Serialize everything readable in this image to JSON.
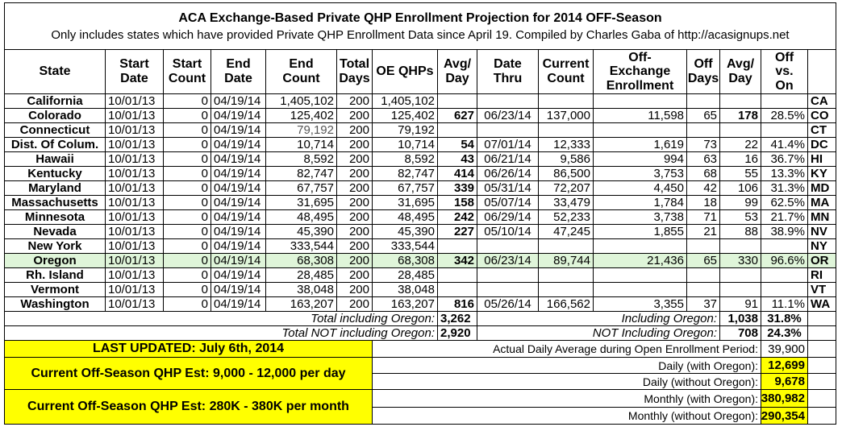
{
  "title": "ACA Exchange-Based Private QHP Enrollment Projection for 2014 OFF-Season",
  "subtitle": "Only includes states which have provided Private QHP Enrollment Data since April 19. Compiled by Charles Gaba of http://acasignups.net",
  "table": {
    "headers": [
      "State",
      "Start Date",
      "Start Count",
      "End Date",
      "End Count",
      "Total Days",
      "OE QHPs",
      "Avg/ Day",
      "Date Thru",
      "Current Count",
      "Off-Exchange Enrollment",
      "Off Days",
      "Avg/ Day",
      "Off vs. On"
    ],
    "rows": [
      [
        "California",
        "10/01/13",
        "0",
        "04/19/14",
        "1,405,102",
        "200",
        "1,405,102",
        null,
        null,
        null,
        null,
        null,
        null,
        null,
        "CA"
      ],
      [
        "Colorado",
        "10/01/13",
        "0",
        "04/19/14",
        "125,402",
        "200",
        "125,402",
        "627",
        "06/23/14",
        "137,000",
        "11,598",
        "65",
        "178",
        "28.5%",
        "CO"
      ],
      [
        "Connecticut",
        "10/01/13",
        "0",
        "04/19/14",
        "79,192",
        "200",
        "79,192",
        null,
        null,
        null,
        null,
        null,
        null,
        null,
        "CT"
      ],
      [
        "Dist. Of Colum.",
        "10/01/13",
        "0",
        "04/19/14",
        "10,714",
        "200",
        "10,714",
        "54",
        "07/01/14",
        "12,333",
        "1,619",
        "73",
        "22",
        "41.4%",
        "DC"
      ],
      [
        "Hawaii",
        "10/01/13",
        "0",
        "04/19/14",
        "8,592",
        "200",
        "8,592",
        "43",
        "06/21/14",
        "9,586",
        "994",
        "63",
        "16",
        "36.7%",
        "HI"
      ],
      [
        "Kentucky",
        "10/01/13",
        "0",
        "04/19/14",
        "82,747",
        "200",
        "82,747",
        "414",
        "06/26/14",
        "86,500",
        "3,753",
        "68",
        "55",
        "13.3%",
        "KY"
      ],
      [
        "Maryland",
        "10/01/13",
        "0",
        "04/19/14",
        "67,757",
        "200",
        "67,757",
        "339",
        "05/31/14",
        "72,207",
        "4,450",
        "42",
        "106",
        "31.3%",
        "MD"
      ],
      [
        "Massachusetts",
        "10/01/13",
        "0",
        "04/19/14",
        "31,695",
        "200",
        "31,695",
        "158",
        "05/07/14",
        "33,479",
        "1,784",
        "18",
        "99",
        "62.5%",
        "MA"
      ],
      [
        "Minnesota",
        "10/01/13",
        "0",
        "04/19/14",
        "48,495",
        "200",
        "48,495",
        "242",
        "06/29/14",
        "52,233",
        "3,738",
        "71",
        "53",
        "21.7%",
        "MN"
      ],
      [
        "Nevada",
        "10/01/13",
        "0",
        "04/19/14",
        "45,390",
        "200",
        "45,390",
        "227",
        "05/10/14",
        "47,245",
        "1,855",
        "21",
        "88",
        "38.9%",
        "NV"
      ],
      [
        "New York",
        "10/01/13",
        "0",
        "04/19/14",
        "333,544",
        "200",
        "333,544",
        null,
        null,
        null,
        null,
        null,
        null,
        null,
        "NY"
      ],
      [
        "Oregon",
        "10/01/13",
        "0",
        "04/19/14",
        "68,308",
        "200",
        "68,308",
        "342",
        "06/23/14",
        "89,744",
        "21,436",
        "65",
        "330",
        "96.6%",
        "OR"
      ],
      [
        "Rh. Island",
        "10/01/13",
        "0",
        "04/19/14",
        "28,485",
        "200",
        "28,485",
        null,
        null,
        null,
        null,
        null,
        null,
        null,
        "RI"
      ],
      [
        "Vermont",
        "10/01/13",
        "0",
        "04/19/14",
        "38,048",
        "200",
        "38,048",
        null,
        null,
        null,
        null,
        null,
        null,
        null,
        "VT"
      ],
      [
        "Washington",
        "10/01/13",
        "0",
        "04/19/14",
        "163,207",
        "200",
        "163,207",
        "816",
        "05/26/14",
        "166,562",
        "3,355",
        "37",
        "91",
        "11.1%",
        "WA"
      ]
    ]
  },
  "totals": [
    {
      "left_label": "Total including Oregon:",
      "left_value": "3,262",
      "right_label": "Including Oregon:",
      "right_value": "1,038",
      "right_pct": "31.8%"
    },
    {
      "left_label": "Total NOT including Oregon:",
      "left_value": "2,920",
      "right_label": "NOT Including Oregon:",
      "right_value": "708",
      "right_pct": "24.3%"
    }
  ],
  "summary": {
    "last_updated": "LAST UPDATED: July 6th, 2014",
    "estimates": [
      "Current Off-Season QHP Est: 9,000 - 12,000 per day",
      "Current Off-Season QHP Est: 280K - 380K per month"
    ],
    "stats": [
      {
        "label": "Actual Daily Average during Open Enrollment Period:",
        "value": "39,900"
      },
      {
        "label": "Daily (with Oregon):",
        "value": "12,699"
      },
      {
        "label": "Daily (without Oregon):",
        "value": "9,678"
      },
      {
        "label": "Monthly (with Oregon):",
        "value": "380,982"
      },
      {
        "label": "Monthly (without Oregon):",
        "value": "290,354"
      }
    ]
  }
}
